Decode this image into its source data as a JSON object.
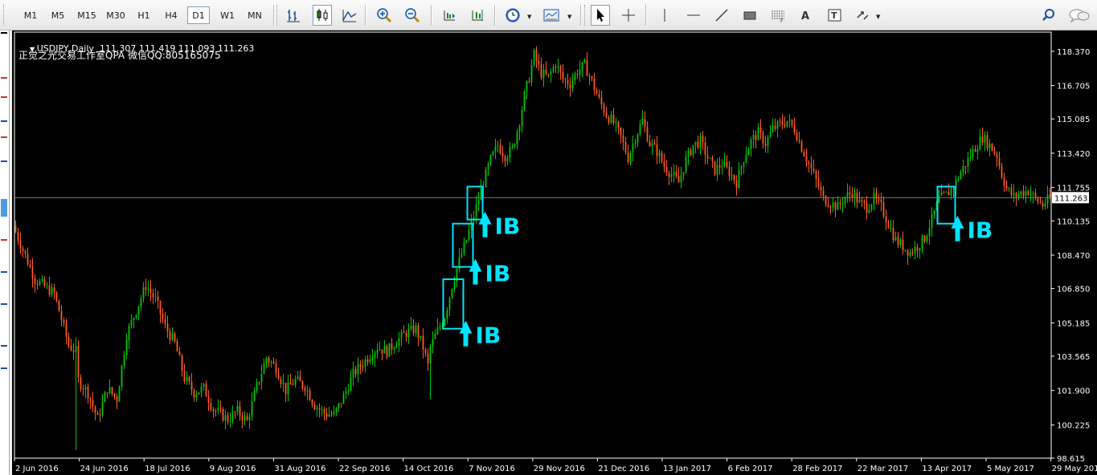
{
  "toolbar": {
    "timeframes": [
      {
        "label": "M1",
        "active": false
      },
      {
        "label": "M5",
        "active": false
      },
      {
        "label": "M15",
        "active": false
      },
      {
        "label": "M30",
        "active": false
      },
      {
        "label": "H1",
        "active": false
      },
      {
        "label": "H4",
        "active": false
      },
      {
        "label": "D1",
        "active": true
      },
      {
        "label": "W1",
        "active": false
      },
      {
        "label": "MN",
        "active": false
      }
    ],
    "tools": [
      "bar-chart-icon",
      "candlestick-chart-icon",
      "line-chart-icon",
      "zoom-in-icon",
      "zoom-out-icon",
      "chart-shift-icon",
      "auto-scroll-icon",
      "periods-clock-icon",
      "templates-icon",
      "cursor-icon",
      "crosshair-icon",
      "vertical-line-icon",
      "horizontal-line-icon",
      "trendline-icon",
      "rectangle-icon",
      "fibonacci-icon",
      "text-icon",
      "text-label-icon",
      "arrows-icon",
      "search-icon",
      "chat-icon"
    ]
  },
  "chart": {
    "symbol_line": "USDJPY,Daily  111.307 111.419 111.093 111.263",
    "watermark": "正觉之光交易工作室QPA 微信QQ:805165075",
    "current_price": "111.263",
    "colors": {
      "background": "#000000",
      "bull": "#00c800",
      "bear": "#ff5a1e",
      "annotation": "#00e5ff",
      "axis": "#ffffff"
    }
  },
  "chart_data": {
    "type": "candlestick",
    "symbol": "USDJPY",
    "timeframe": "Daily",
    "ylim": [
      98.615,
      119.3
    ],
    "y_ticks": [
      "118.370",
      "116.705",
      "115.085",
      "113.420",
      "111.755",
      "110.135",
      "108.470",
      "106.850",
      "105.185",
      "103.565",
      "101.900",
      "100.225",
      "98.615"
    ],
    "x_ticks": [
      "2 Jun 2016",
      "24 Jun 2016",
      "18 Jul 2016",
      "9 Aug 2016",
      "31 Aug 2016",
      "22 Sep 2016",
      "14 Oct 2016",
      "7 Nov 2016",
      "29 Nov 2016",
      "21 Dec 2016",
      "13 Jan 2017",
      "6 Feb 2017",
      "28 Feb 2017",
      "22 Mar 2017",
      "13 Apr 2017",
      "5 May 2017",
      "29 May 2017"
    ],
    "last_close": 111.263,
    "path": [
      [
        0,
        109.6
      ],
      [
        8,
        107.3
      ],
      [
        16,
        106.6
      ],
      [
        22,
        104.1
      ],
      [
        25,
        103.8
      ],
      [
        26,
        102.4
      ],
      [
        30,
        101.8
      ],
      [
        34,
        100.5
      ],
      [
        38,
        102.0
      ],
      [
        42,
        101.5
      ],
      [
        46,
        104.6
      ],
      [
        50,
        105.8
      ],
      [
        54,
        107.0
      ],
      [
        58,
        106.3
      ],
      [
        62,
        105.0
      ],
      [
        66,
        104.2
      ],
      [
        70,
        102.5
      ],
      [
        74,
        101.8
      ],
      [
        78,
        102.0
      ],
      [
        82,
        101.0
      ],
      [
        88,
        100.5
      ],
      [
        92,
        100.9
      ],
      [
        96,
        100.4
      ],
      [
        100,
        102.1
      ],
      [
        104,
        103.5
      ],
      [
        108,
        103.0
      ],
      [
        112,
        101.9
      ],
      [
        116,
        102.4
      ],
      [
        120,
        102.1
      ],
      [
        124,
        101.2
      ],
      [
        128,
        100.8
      ],
      [
        132,
        100.7
      ],
      [
        136,
        101.6
      ],
      [
        140,
        102.7
      ],
      [
        146,
        103.5
      ],
      [
        150,
        104.0
      ],
      [
        154,
        103.8
      ],
      [
        158,
        104.3
      ],
      [
        162,
        104.7
      ],
      [
        166,
        104.9
      ],
      [
        169,
        104.0
      ],
      [
        171,
        103.1
      ],
      [
        172,
        104.0
      ],
      [
        175,
        104.8
      ],
      [
        178,
        105.5
      ],
      [
        181,
        107.0
      ],
      [
        184,
        108.2
      ],
      [
        187,
        109.2
      ],
      [
        189,
        110.0
      ],
      [
        191,
        110.8
      ],
      [
        194,
        112.0
      ],
      [
        197,
        113.1
      ],
      [
        200,
        113.8
      ],
      [
        203,
        113.3
      ],
      [
        206,
        113.6
      ],
      [
        209,
        115.0
      ],
      [
        211,
        116.2
      ],
      [
        213,
        117.1
      ],
      [
        215,
        118.2
      ],
      [
        218,
        117.3
      ],
      [
        221,
        117.1
      ],
      [
        224,
        117.8
      ],
      [
        227,
        117.0
      ],
      [
        230,
        116.8
      ],
      [
        233,
        117.4
      ],
      [
        236,
        117.7
      ],
      [
        239,
        116.9
      ],
      [
        242,
        116.0
      ],
      [
        245,
        115.3
      ],
      [
        248,
        114.9
      ],
      [
        251,
        114.2
      ],
      [
        254,
        113.2
      ],
      [
        257,
        114.2
      ],
      [
        260,
        115.0
      ],
      [
        263,
        113.9
      ],
      [
        266,
        113.5
      ],
      [
        269,
        112.8
      ],
      [
        272,
        112.4
      ],
      [
        275,
        112.0
      ],
      [
        278,
        113.1
      ],
      [
        281,
        113.8
      ],
      [
        284,
        114.0
      ],
      [
        287,
        113.2
      ],
      [
        290,
        112.6
      ],
      [
        293,
        112.9
      ],
      [
        296,
        112.5
      ],
      [
        299,
        112.0
      ],
      [
        302,
        113.2
      ],
      [
        305,
        114.0
      ],
      [
        308,
        114.4
      ],
      [
        311,
        113.9
      ],
      [
        314,
        114.6
      ],
      [
        317,
        114.8
      ],
      [
        320,
        115.0
      ],
      [
        323,
        114.6
      ],
      [
        326,
        113.7
      ],
      [
        329,
        112.9
      ],
      [
        332,
        112.1
      ],
      [
        335,
        111.2
      ],
      [
        338,
        111.0
      ],
      [
        341,
        110.8
      ],
      [
        344,
        111.3
      ],
      [
        347,
        111.5
      ],
      [
        350,
        111.0
      ],
      [
        353,
        110.8
      ],
      [
        356,
        111.2
      ],
      [
        359,
        110.8
      ],
      [
        362,
        110.0
      ],
      [
        365,
        109.2
      ],
      [
        368,
        108.9
      ],
      [
        371,
        108.6
      ],
      [
        374,
        108.9
      ],
      [
        377,
        109.3
      ],
      [
        380,
        110.2
      ],
      [
        383,
        111.2
      ],
      [
        386,
        111.4
      ],
      [
        389,
        111.8
      ],
      [
        392,
        112.5
      ],
      [
        395,
        113.1
      ],
      [
        398,
        113.7
      ],
      [
        401,
        114.2
      ],
      [
        404,
        113.8
      ],
      [
        407,
        113.3
      ],
      [
        409,
        112.4
      ],
      [
        411,
        111.7
      ],
      [
        414,
        111.3
      ],
      [
        417,
        111.5
      ],
      [
        420,
        111.6
      ],
      [
        423,
        111.2
      ],
      [
        426,
        110.9
      ],
      [
        429,
        111.263
      ]
    ],
    "annotations": [
      {
        "label": "IB",
        "box": [
          "7 Nov 2016 area",
          107.3,
          104.9
        ]
      },
      {
        "label": "IB",
        "box": [
          "10 Nov 2016 area",
          110.0,
          107.9
        ]
      },
      {
        "label": "IB",
        "box": [
          "15 Nov 2016 area",
          111.8,
          110.2
        ]
      },
      {
        "label": "IB",
        "box": [
          "18 Apr 2017 area",
          111.8,
          110.0
        ]
      }
    ]
  }
}
